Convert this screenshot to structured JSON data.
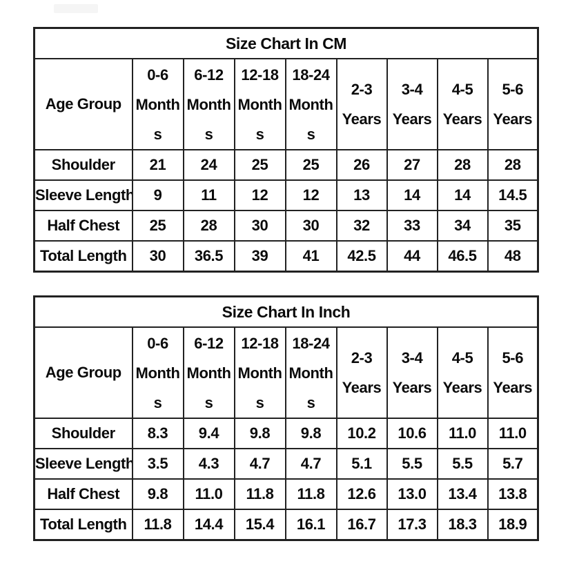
{
  "page": {
    "background_color": "#ffffff",
    "border_color": "#212121",
    "text_color": "#0b0b0b"
  },
  "display": {
    "tables": [
      {
        "title": "Size Chart In CM",
        "header_label": "Age Group",
        "columns": [
          [
            "0-6",
            "Month",
            "s"
          ],
          [
            "6-12",
            "Month",
            "s"
          ],
          [
            "12-18",
            "Month",
            "s"
          ],
          [
            "18-24",
            "Month",
            "s"
          ],
          [
            "2-3",
            "Years"
          ],
          [
            "3-4",
            "Years"
          ],
          [
            "4-5",
            "Years"
          ],
          [
            "5-6",
            "Years"
          ]
        ],
        "rows": [
          {
            "label": "Shoulder",
            "values": [
              "21",
              "24",
              "25",
              "25",
              "26",
              "27",
              "28",
              "28"
            ]
          },
          {
            "label": "Sleeve Length",
            "values": [
              "9",
              "11",
              "12",
              "12",
              "13",
              "14",
              "14",
              "14.5"
            ]
          },
          {
            "label": "Half Chest",
            "values": [
              "25",
              "28",
              "30",
              "30",
              "32",
              "33",
              "34",
              "35"
            ]
          },
          {
            "label": "Total Length",
            "values": [
              "30",
              "36.5",
              "39",
              "41",
              "42.5",
              "44",
              "46.5",
              "48"
            ]
          }
        ]
      },
      {
        "title": "Size Chart In Inch",
        "header_label": "Age Group",
        "columns": [
          [
            "0-6",
            "Month",
            "s"
          ],
          [
            "6-12",
            "Month",
            "s"
          ],
          [
            "12-18",
            "Month",
            "s"
          ],
          [
            "18-24",
            "Month",
            "s"
          ],
          [
            "2-3",
            "Years"
          ],
          [
            "3-4",
            "Years"
          ],
          [
            "4-5",
            "Years"
          ],
          [
            "5-6",
            "Years"
          ]
        ],
        "rows": [
          {
            "label": "Shoulder",
            "values": [
              "8.3",
              "9.4",
              "9.8",
              "9.8",
              "10.2",
              "10.6",
              "11.0",
              "11.0"
            ]
          },
          {
            "label": "Sleeve Length",
            "values": [
              "3.5",
              "4.3",
              "4.7",
              "4.7",
              "5.1",
              "5.5",
              "5.5",
              "5.7"
            ]
          },
          {
            "label": "Half Chest",
            "values": [
              "9.8",
              "11.0",
              "11.8",
              "11.8",
              "12.6",
              "13.0",
              "13.4",
              "13.8"
            ]
          },
          {
            "label": "Total Length",
            "values": [
              "11.8",
              "14.4",
              "15.4",
              "16.1",
              "16.7",
              "17.3",
              "18.3",
              "18.9"
            ]
          }
        ]
      }
    ]
  },
  "chart_data": [
    {
      "type": "table",
      "title": "Size Chart In CM",
      "columns": [
        "Age Group",
        "0-6 Months",
        "6-12 Months",
        "12-18 Months",
        "18-24 Months",
        "2-3 Years",
        "3-4 Years",
        "4-5 Years",
        "5-6 Years"
      ],
      "rows": [
        [
          "Shoulder",
          21,
          24,
          25,
          25,
          26,
          27,
          28,
          28
        ],
        [
          "Sleeve Length",
          9,
          11,
          12,
          12,
          13,
          14,
          14,
          14.5
        ],
        [
          "Half Chest",
          25,
          28,
          30,
          30,
          32,
          33,
          34,
          35
        ],
        [
          "Total Length",
          30,
          36.5,
          39,
          41,
          42.5,
          44,
          46.5,
          48
        ]
      ]
    },
    {
      "type": "table",
      "title": "Size Chart In Inch",
      "columns": [
        "Age Group",
        "0-6 Months",
        "6-12 Months",
        "12-18 Months",
        "18-24 Months",
        "2-3 Years",
        "3-4 Years",
        "4-5 Years",
        "5-6 Years"
      ],
      "rows": [
        [
          "Shoulder",
          8.3,
          9.4,
          9.8,
          9.8,
          10.2,
          10.6,
          11.0,
          11.0
        ],
        [
          "Sleeve Length",
          3.5,
          4.3,
          4.7,
          4.7,
          5.1,
          5.5,
          5.5,
          5.7
        ],
        [
          "Half Chest",
          9.8,
          11.0,
          11.8,
          11.8,
          12.6,
          13.0,
          13.4,
          13.8
        ],
        [
          "Total Length",
          11.8,
          14.4,
          15.4,
          16.1,
          16.7,
          17.3,
          18.3,
          18.9
        ]
      ]
    }
  ]
}
